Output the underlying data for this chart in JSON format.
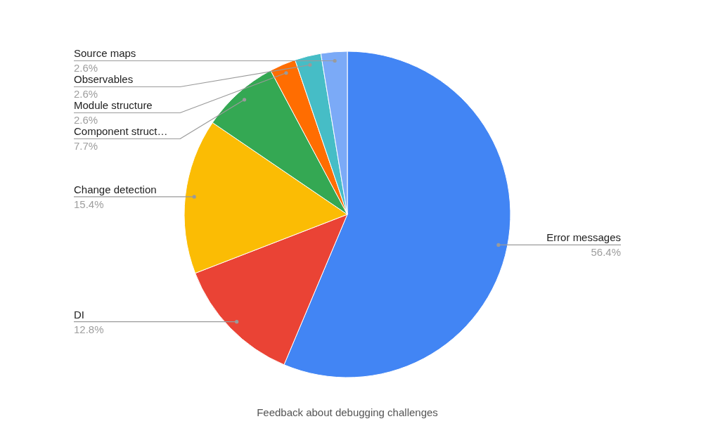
{
  "chart_data": {
    "type": "pie",
    "title": "Feedback about debugging challenges",
    "categories": [
      "Error messages",
      "DI",
      "Change detection",
      "Component struct…",
      "Module structure",
      "Observables",
      "Source maps"
    ],
    "values": [
      56.4,
      12.8,
      15.4,
      7.7,
      2.6,
      2.6,
      2.6
    ],
    "colors": [
      "#4285f4",
      "#ea4335",
      "#fbbc04",
      "#34a853",
      "#ff6d01",
      "#46bdc6",
      "#7baaf7"
    ],
    "value_labels": [
      "56.4%",
      "12.8%",
      "15.4%",
      "7.7%",
      "2.6%",
      "2.6%",
      "2.6%"
    ]
  }
}
